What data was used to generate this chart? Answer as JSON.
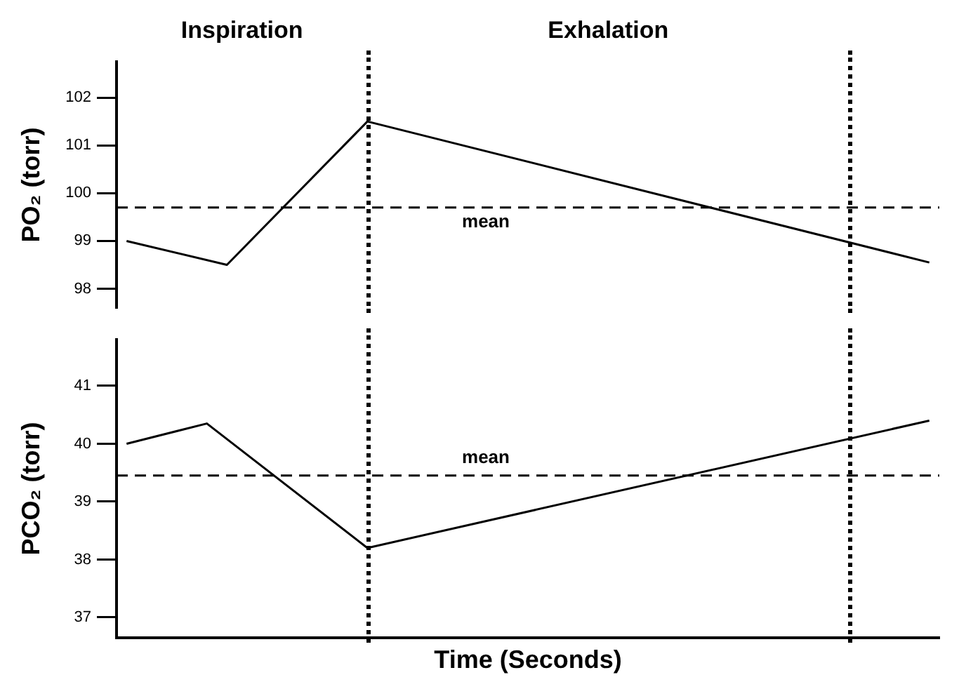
{
  "chart_data": [
    {
      "type": "line",
      "ylabel": "PO₂ (torr)",
      "categories": [
        null,
        null,
        null,
        null,
        null,
        null,
        null,
        null,
        null,
        null,
        null,
        null,
        null,
        null,
        null,
        null,
        null,
        null,
        null,
        null,
        null,
        null,
        null,
        null,
        null,
        null,
        null,
        null,
        null,
        null,
        null,
        null,
        null,
        null,
        null,
        null,
        null,
        null,
        null,
        null,
        null
      ],
      "ylim": [
        97.6,
        102.75
      ],
      "yticks": [
        98,
        99,
        100,
        101,
        102
      ],
      "tick_labels": "y",
      "grid": false,
      "legend": false,
      "marker": "none",
      "line_style": "solid",
      "series": [
        {
          "color": "#000000",
          "values": [
            99.0,
            null,
            null,
            null,
            null,
            98.5,
            null,
            null,
            null,
            null,
            null,
            null,
            101.5,
            null,
            null,
            null,
            null,
            null,
            null,
            null,
            null,
            null,
            null,
            null,
            null,
            null,
            null,
            null,
            null,
            null,
            null,
            null,
            null,
            null,
            null,
            null,
            null,
            null,
            null,
            null,
            98.55
          ]
        }
      ],
      "ref_lines": [
        {
          "axis": "y",
          "value": 99.7,
          "label": "mean",
          "line_style": "dashed"
        }
      ],
      "annotations": [
        "Inspiration",
        "Exhalation"
      ]
    },
    {
      "type": "line",
      "ylabel": "PCO₂ (torr)",
      "xlabel": "Time (Seconds)",
      "categories": [
        null,
        null,
        null,
        null,
        null,
        null,
        null,
        null,
        null,
        null,
        null,
        null,
        null,
        null,
        null,
        null,
        null,
        null,
        null,
        null,
        null,
        null,
        null,
        null,
        null,
        null,
        null,
        null,
        null,
        null,
        null,
        null,
        null,
        null,
        null,
        null,
        null,
        null,
        null,
        null,
        null
      ],
      "ylim": [
        36.65,
        41.8
      ],
      "yticks": [
        37,
        38,
        39,
        40,
        41
      ],
      "tick_labels": "y",
      "grid": false,
      "legend": false,
      "marker": "none",
      "line_style": "solid",
      "series": [
        {
          "color": "#000000",
          "values": [
            40.0,
            null,
            null,
            null,
            40.35,
            null,
            null,
            null,
            null,
            null,
            null,
            null,
            38.2,
            null,
            null,
            null,
            null,
            null,
            null,
            null,
            null,
            null,
            null,
            null,
            null,
            null,
            null,
            null,
            null,
            null,
            null,
            null,
            null,
            null,
            null,
            null,
            null,
            null,
            null,
            null,
            40.4
          ]
        }
      ],
      "ref_lines": [
        {
          "axis": "y",
          "value": 39.45,
          "label": "mean",
          "line_style": "dashed"
        }
      ]
    }
  ]
}
